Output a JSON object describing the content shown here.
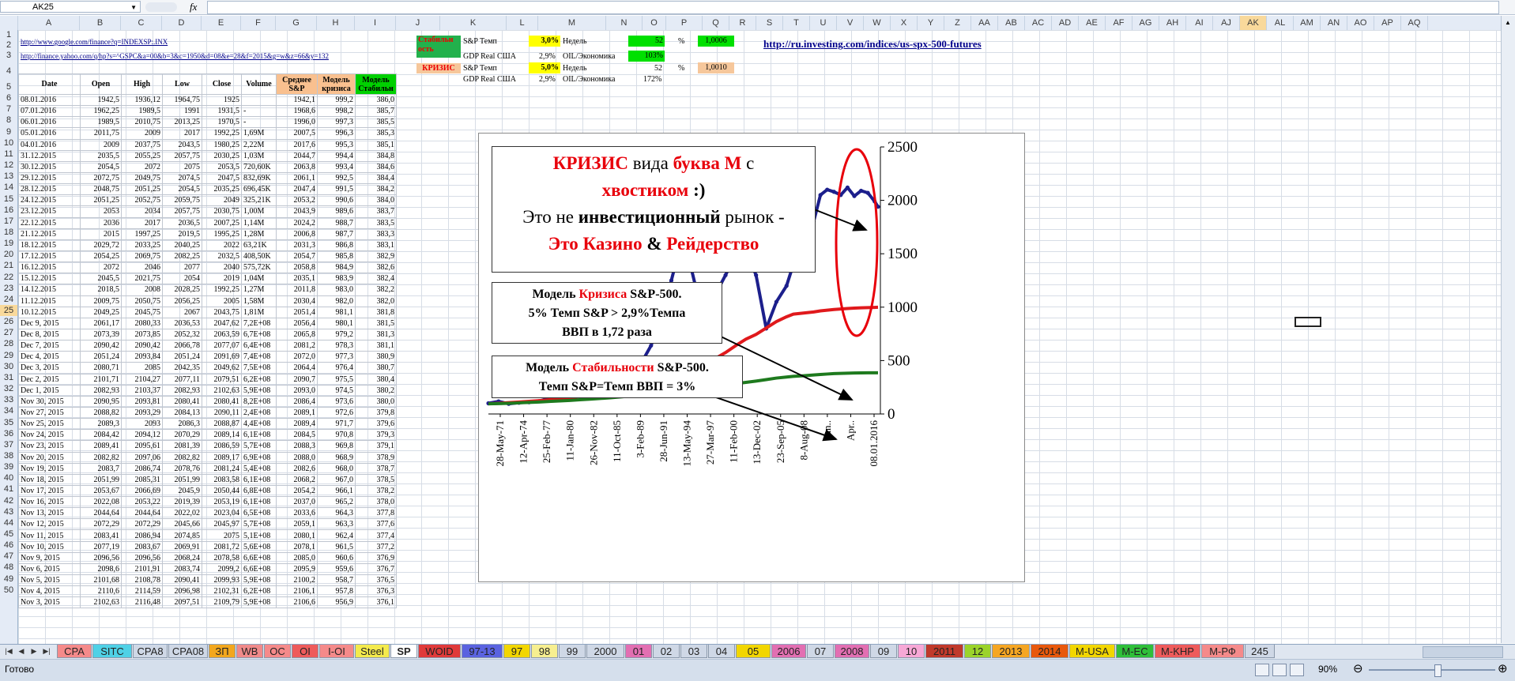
{
  "formula_bar": {
    "name_box": "AK25",
    "fx": "fx"
  },
  "columns": [
    {
      "label": "A",
      "w": 78
    },
    {
      "label": "B",
      "w": 52
    },
    {
      "label": "C",
      "w": 52
    },
    {
      "label": "D",
      "w": 50
    },
    {
      "label": "E",
      "w": 50
    },
    {
      "label": "F",
      "w": 44
    },
    {
      "label": "G",
      "w": 52
    },
    {
      "label": "H",
      "w": 48
    },
    {
      "label": "I",
      "w": 52
    },
    {
      "label": "J",
      "w": 56
    },
    {
      "label": "K",
      "w": 84
    },
    {
      "label": "L",
      "w": 40
    },
    {
      "label": "M",
      "w": 86
    },
    {
      "label": "N",
      "w": 46
    },
    {
      "label": "O",
      "w": 30
    },
    {
      "label": "P",
      "w": 46
    },
    {
      "label": "Q",
      "w": 34
    },
    {
      "label": "R",
      "w": 34
    },
    {
      "label": "S",
      "w": 34
    },
    {
      "label": "T",
      "w": 34
    },
    {
      "label": "U",
      "w": 34
    },
    {
      "label": "V",
      "w": 34
    },
    {
      "label": "W",
      "w": 34
    },
    {
      "label": "X",
      "w": 34
    },
    {
      "label": "Y",
      "w": 34
    },
    {
      "label": "Z",
      "w": 34
    },
    {
      "label": "AA",
      "w": 34
    },
    {
      "label": "AB",
      "w": 34
    },
    {
      "label": "AC",
      "w": 34
    },
    {
      "label": "AD",
      "w": 34
    },
    {
      "label": "AE",
      "w": 34
    },
    {
      "label": "AF",
      "w": 34
    },
    {
      "label": "AG",
      "w": 34
    },
    {
      "label": "AH",
      "w": 34
    },
    {
      "label": "AI",
      "w": 34
    },
    {
      "label": "AJ",
      "w": 34
    },
    {
      "label": "AK",
      "w": 34,
      "selected": true
    },
    {
      "label": "AL",
      "w": 34
    },
    {
      "label": "AM",
      "w": 34
    },
    {
      "label": "AN",
      "w": 34
    },
    {
      "label": "AO",
      "w": 34
    },
    {
      "label": "AP",
      "w": 34
    },
    {
      "label": "AQ",
      "w": 34
    }
  ],
  "selected_row": 25,
  "links": {
    "google": "http://www.google.com/finance?q=INDEXSP:.INX",
    "yahoo": "http://finance.yahoo.com/q/hp?s=^GSPC&a=00&b=3&c=1950&d=08&e=28&f=2015&g=w&z=66&y=132",
    "investing": "http://ru.investing.com/indices/us-spx-500-futures"
  },
  "model_panel": {
    "stability_label": "Стабильн ость",
    "crisis_label": "КРИЗИС",
    "row1": {
      "k": "S&P Темп",
      "l": "3,0%",
      "m": "Недель",
      "n": "52",
      "o": "%",
      "p": "1,0006"
    },
    "row2": {
      "k": "GDP Real США",
      "l": "2,9%",
      "m": "OIL/Экономика",
      "n": "103%"
    },
    "row3": {
      "k": "S&P Темп",
      "l": "5,0%",
      "m": "Недель",
      "n": "52",
      "o": "%",
      "p": "1,0010"
    },
    "row4": {
      "k": "GDP Real США",
      "l": "2,9%",
      "m": "OIL/Экономика",
      "n": "172%"
    }
  },
  "table": {
    "headers": [
      "Date",
      "Open",
      "High",
      "Low",
      "Close",
      "Volume",
      "Среднее S&P",
      "Модель кризиса",
      "Модель Стабильн"
    ],
    "rows": [
      [
        "08.01.2016",
        "1942,5",
        "1936,12",
        "1964,75",
        "1925",
        "",
        "1942,1",
        "999,2",
        "386,0"
      ],
      [
        "07.01.2016",
        "1962,25",
        "1989,5",
        "1991",
        "1931,5",
        "-",
        "1968,6",
        "998,2",
        "385,7"
      ],
      [
        "06.01.2016",
        "1989,5",
        "2010,75",
        "2013,25",
        "1970,5",
        "-",
        "1996,0",
        "997,3",
        "385,5"
      ],
      [
        "05.01.2016",
        "2011,75",
        "2009",
        "2017",
        "1992,25",
        "1,69M",
        "2007,5",
        "996,3",
        "385,3"
      ],
      [
        "04.01.2016",
        "2009",
        "2037,75",
        "2043,5",
        "1980,25",
        "2,22M",
        "2017,6",
        "995,3",
        "385,1"
      ],
      [
        "31.12.2015",
        "2035,5",
        "2055,25",
        "2057,75",
        "2030,25",
        "1,03M",
        "2044,7",
        "994,4",
        "384,8"
      ],
      [
        "30.12.2015",
        "2054,5",
        "2072",
        "2075",
        "2053,5",
        "720,60K",
        "2063,8",
        "993,4",
        "384,6"
      ],
      [
        "29.12.2015",
        "2072,75",
        "2049,75",
        "2074,5",
        "2047,5",
        "832,69K",
        "2061,1",
        "992,5",
        "384,4"
      ],
      [
        "28.12.2015",
        "2048,75",
        "2051,25",
        "2054,5",
        "2035,25",
        "696,45K",
        "2047,4",
        "991,5",
        "384,2"
      ],
      [
        "24.12.2015",
        "2051,25",
        "2052,75",
        "2059,75",
        "2049",
        "325,21K",
        "2053,2",
        "990,6",
        "384,0"
      ],
      [
        "23.12.2015",
        "2053",
        "2034",
        "2057,75",
        "2030,75",
        "1,00M",
        "2043,9",
        "989,6",
        "383,7"
      ],
      [
        "22.12.2015",
        "2036",
        "2017",
        "2036,5",
        "2007,25",
        "1,14M",
        "2024,2",
        "988,7",
        "383,5"
      ],
      [
        "21.12.2015",
        "2015",
        "1997,25",
        "2019,5",
        "1995,25",
        "1,28M",
        "2006,8",
        "987,7",
        "383,3"
      ],
      [
        "18.12.2015",
        "2029,72",
        "2033,25",
        "2040,25",
        "2022",
        "63,21K",
        "2031,3",
        "986,8",
        "383,1"
      ],
      [
        "17.12.2015",
        "2054,25",
        "2069,75",
        "2082,25",
        "2032,5",
        "408,50K",
        "2054,7",
        "985,8",
        "382,9"
      ],
      [
        "16.12.2015",
        "2072",
        "2046",
        "2077",
        "2040",
        "575,72K",
        "2058,8",
        "984,9",
        "382,6"
      ],
      [
        "15.12.2015",
        "2045,5",
        "2021,75",
        "2054",
        "2019",
        "1,04M",
        "2035,1",
        "983,9",
        "382,4"
      ],
      [
        "14.12.2015",
        "2018,5",
        "2008",
        "2028,25",
        "1992,25",
        "1,27M",
        "2011,8",
        "983,0",
        "382,2"
      ],
      [
        "11.12.2015",
        "2009,75",
        "2050,75",
        "2056,25",
        "2005",
        "1,58M",
        "2030,4",
        "982,0",
        "382,0"
      ],
      [
        "10.12.2015",
        "2049,25",
        "2045,75",
        "2067",
        "2043,75",
        "1,81M",
        "2051,4",
        "981,1",
        "381,8"
      ],
      [
        "Dec 9, 2015",
        "2061,17",
        "2080,33",
        "2036,53",
        "2047,62",
        "7,2E+08",
        "2056,4",
        "980,1",
        "381,5"
      ],
      [
        "Dec 8, 2015",
        "2073,39",
        "2073,85",
        "2052,32",
        "2063,59",
        "6,7E+08",
        "2065,8",
        "979,2",
        "381,3"
      ],
      [
        "Dec 7, 2015",
        "2090,42",
        "2090,42",
        "2066,78",
        "2077,07",
        "6,4E+08",
        "2081,2",
        "978,3",
        "381,1"
      ],
      [
        "Dec 4, 2015",
        "2051,24",
        "2093,84",
        "2051,24",
        "2091,69",
        "7,4E+08",
        "2072,0",
        "977,3",
        "380,9"
      ],
      [
        "Dec 3, 2015",
        "2080,71",
        "2085",
        "2042,35",
        "2049,62",
        "7,5E+08",
        "2064,4",
        "976,4",
        "380,7"
      ],
      [
        "Dec 2, 2015",
        "2101,71",
        "2104,27",
        "2077,11",
        "2079,51",
        "6,2E+08",
        "2090,7",
        "975,5",
        "380,4"
      ],
      [
        "Dec 1, 2015",
        "2082,93",
        "2103,37",
        "2082,93",
        "2102,63",
        "5,9E+08",
        "2093,0",
        "974,5",
        "380,2"
      ],
      [
        "Nov 30, 2015",
        "2090,95",
        "2093,81",
        "2080,41",
        "2080,41",
        "8,2E+08",
        "2086,4",
        "973,6",
        "380,0"
      ],
      [
        "Nov 27, 2015",
        "2088,82",
        "2093,29",
        "2084,13",
        "2090,11",
        "2,4E+08",
        "2089,1",
        "972,6",
        "379,8"
      ],
      [
        "Nov 25, 2015",
        "2089,3",
        "2093",
        "2086,3",
        "2088,87",
        "4,4E+08",
        "2089,4",
        "971,7",
        "379,6"
      ],
      [
        "Nov 24, 2015",
        "2084,42",
        "2094,12",
        "2070,29",
        "2089,14",
        "6,1E+08",
        "2084,5",
        "970,8",
        "379,3"
      ],
      [
        "Nov 23, 2015",
        "2089,41",
        "2095,61",
        "2081,39",
        "2086,59",
        "5,7E+08",
        "2088,3",
        "969,8",
        "379,1"
      ],
      [
        "Nov 20, 2015",
        "2082,82",
        "2097,06",
        "2082,82",
        "2089,17",
        "6,9E+08",
        "2088,0",
        "968,9",
        "378,9"
      ],
      [
        "Nov 19, 2015",
        "2083,7",
        "2086,74",
        "2078,76",
        "2081,24",
        "5,4E+08",
        "2082,6",
        "968,0",
        "378,7"
      ],
      [
        "Nov 18, 2015",
        "2051,99",
        "2085,31",
        "2051,99",
        "2083,58",
        "6,1E+08",
        "2068,2",
        "967,0",
        "378,5"
      ],
      [
        "Nov 17, 2015",
        "2053,67",
        "2066,69",
        "2045,9",
        "2050,44",
        "6,8E+08",
        "2054,2",
        "966,1",
        "378,2"
      ],
      [
        "Nov 16, 2015",
        "2022,08",
        "2053,22",
        "2019,39",
        "2053,19",
        "6,1E+08",
        "2037,0",
        "965,2",
        "378,0"
      ],
      [
        "Nov 13, 2015",
        "2044,64",
        "2044,64",
        "2022,02",
        "2023,04",
        "6,5E+08",
        "2033,6",
        "964,3",
        "377,8"
      ],
      [
        "Nov 12, 2015",
        "2072,29",
        "2072,29",
        "2045,66",
        "2045,97",
        "5,7E+08",
        "2059,1",
        "963,3",
        "377,6"
      ],
      [
        "Nov 11, 2015",
        "2083,41",
        "2086,94",
        "2074,85",
        "2075",
        "5,1E+08",
        "2080,1",
        "962,4",
        "377,4"
      ],
      [
        "Nov 10, 2015",
        "2077,19",
        "2083,67",
        "2069,91",
        "2081,72",
        "5,6E+08",
        "2078,1",
        "961,5",
        "377,2"
      ],
      [
        "Nov 9, 2015",
        "2096,56",
        "2096,56",
        "2068,24",
        "2078,58",
        "6,6E+08",
        "2085,0",
        "960,6",
        "376,9"
      ],
      [
        "Nov 6, 2015",
        "2098,6",
        "2101,91",
        "2083,74",
        "2099,2",
        "6,6E+08",
        "2095,9",
        "959,6",
        "376,7"
      ],
      [
        "Nov 5, 2015",
        "2101,68",
        "2108,78",
        "2090,41",
        "2099,93",
        "5,9E+08",
        "2100,2",
        "958,7",
        "376,5"
      ],
      [
        "Nov 4, 2015",
        "2110,6",
        "2114,59",
        "2096,98",
        "2102,31",
        "6,2E+08",
        "2106,1",
        "957,8",
        "376,3"
      ],
      [
        "Nov 3, 2015",
        "2102,63",
        "2116,48",
        "2097,51",
        "2109,79",
        "5,9E+08",
        "2106,6",
        "956,9",
        "376,1"
      ]
    ]
  },
  "chart_data": {
    "type": "line",
    "x_tick_labels": [
      "28-May-71",
      "12-Apr-74",
      "25-Feb-77",
      "11-Jan-80",
      "26-Nov-82",
      "11-Oct-85",
      "3-Feb-89",
      "28-Jun-91",
      "13-May-94",
      "27-Mar-97",
      "11-Feb-00",
      "13-Dec-02",
      "23-Sep-05",
      "8-Aug-08",
      "Jun..",
      "Apr..",
      "08.01.2016"
    ],
    "y_ticks": [
      0,
      500,
      1000,
      1500,
      2000,
      2500
    ],
    "ylim": [
      0,
      2500
    ],
    "x_index": [
      0,
      6,
      12,
      18,
      24,
      30,
      36,
      42,
      48,
      54,
      60,
      66,
      72,
      78,
      84,
      90,
      96,
      102,
      108,
      112,
      118,
      124,
      130,
      134,
      140,
      146,
      152,
      158,
      164,
      170,
      176,
      180,
      186,
      192,
      196,
      200,
      204,
      208,
      212,
      216,
      220,
      224,
      228,
      230
    ],
    "series": [
      {
        "color": "#1c1f8c",
        "values": [
          100,
          118,
          95,
          105,
          110,
          120,
          150,
          170,
          240,
          280,
          310,
          340,
          380,
          430,
          455,
          470,
          640,
          890,
          1250,
          1500,
          1480,
          1080,
          880,
          1120,
          1300,
          1500,
          1530,
          1300,
          800,
          1050,
          1200,
          1400,
          1550,
          1800,
          2050,
          2100,
          2080,
          2050,
          2120,
          2040,
          2090,
          2070,
          1990,
          1940
        ]
      },
      {
        "color": "#e0191c",
        "values": [
          95,
          100,
          106,
          112,
          118,
          125,
          133,
          142,
          152,
          163,
          176,
          190,
          205,
          222,
          240,
          262,
          285,
          310,
          338,
          368,
          405,
          442,
          488,
          520,
          575,
          640,
          700,
          745,
          805,
          865,
          910,
          935,
          945,
          955,
          965,
          972,
          978,
          983,
          987,
          991,
          994,
          996,
          998,
          999
        ]
      },
      {
        "color": "#1e7a1e",
        "values": [
          95,
          97,
          100,
          104,
          108,
          112,
          117,
          122,
          127,
          133,
          139,
          145,
          152,
          160,
          168,
          176,
          184,
          193,
          203,
          213,
          225,
          237,
          249,
          257,
          270,
          284,
          296,
          308,
          322,
          336,
          346,
          352,
          358,
          365,
          370,
          374,
          378,
          380,
          382,
          384,
          385,
          386,
          386,
          386
        ]
      }
    ]
  },
  "annotations": {
    "box1_line1_a": "КРИЗИС",
    "box1_line1_b": " вида ",
    "box1_line1_c": "буква М",
    "box1_line1_d": " с",
    "box1_line2_a": "хвостиком",
    "box1_line2_b": " :)",
    "box1_line3_a": "Это не ",
    "box1_line3_b": "инвестиционный",
    "box1_line3_c": " рынок -",
    "box1_line4_a": "Это Казино",
    "box1_line4_b": " & ",
    "box1_line4_c": "Рейдерство",
    "box2_line1_a": "Модель ",
    "box2_line1_b": "Кризиса",
    "box2_line1_c": " S&P-500.",
    "box2_line2": "5% Темп S&P > 2,9%Темпа",
    "box2_line3": "ВВП в 1,72 раза",
    "box3_line1_a": "Модель ",
    "box3_line1_b": "Стабильности",
    "box3_line1_c": " S&P-500.",
    "box3_line2": "Темп S&P=Темп ВВП = 3%"
  },
  "sheet_tabs": [
    {
      "label": "СРА",
      "color": "#f58a8a"
    },
    {
      "label": "SITC",
      "color": "#4fd1e6"
    },
    {
      "label": "СРА8",
      "color": "#cfd8e6"
    },
    {
      "label": "СРА08",
      "color": "#cfd8e6"
    },
    {
      "label": "ЗП",
      "color": "#f2a71e"
    },
    {
      "label": "WB",
      "color": "#f08a8a"
    },
    {
      "label": "ОС",
      "color": "#f58a8a"
    },
    {
      "label": "ОI",
      "color": "#ee5b5b"
    },
    {
      "label": "I-OI",
      "color": "#f58a8a"
    },
    {
      "label": "Steel",
      "color": "#f4ea4c"
    },
    {
      "label": "SP",
      "color": "#ffffff",
      "active": true
    },
    {
      "label": "WOID",
      "color": "#e03a3a"
    },
    {
      "label": "97-13",
      "color": "#5a63e0"
    },
    {
      "label": "97",
      "color": "#f2d600"
    },
    {
      "label": "98",
      "color": "#f7ef90"
    },
    {
      "label": "99",
      "color": "#cfd8e6"
    },
    {
      "label": "2000",
      "color": "#cfd8e6"
    },
    {
      "label": "01",
      "color": "#e26fb2"
    },
    {
      "label": "02",
      "color": "#cfd8e6"
    },
    {
      "label": "03",
      "color": "#cfd8e6"
    },
    {
      "label": "04",
      "color": "#cfd8e6"
    },
    {
      "label": "05",
      "color": "#f2d600"
    },
    {
      "label": "2006",
      "color": "#e26fb2"
    },
    {
      "label": "07",
      "color": "#cfd8e6"
    },
    {
      "label": "2008",
      "color": "#e26fb2"
    },
    {
      "label": "09",
      "color": "#cfd8e6"
    },
    {
      "label": "10",
      "color": "#f7a8d6"
    },
    {
      "label": "2011",
      "color": "#c0392b"
    },
    {
      "label": "12",
      "color": "#9bd32a"
    },
    {
      "label": "2013",
      "color": "#f5a623"
    },
    {
      "label": "2014",
      "color": "#e8580c"
    },
    {
      "label": "M-USA",
      "color": "#f2d600"
    },
    {
      "label": "M-EC",
      "color": "#2fbf3a"
    },
    {
      "label": "M-KHP",
      "color": "#ee5b5b"
    },
    {
      "label": "M-РФ",
      "color": "#f58a8a"
    },
    {
      "label": "245",
      "color": "#cfd8e6"
    }
  ],
  "status": {
    "ready": "Готово",
    "zoom": "90%"
  }
}
